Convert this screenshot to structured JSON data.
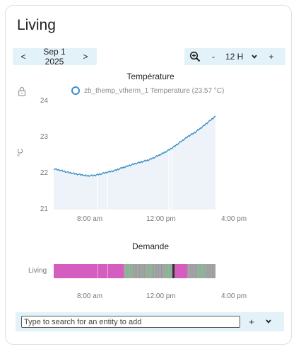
{
  "card": {
    "title": "Living"
  },
  "date_nav": {
    "prev_label": "<",
    "date": "Sep 1 2025",
    "next_label": ">"
  },
  "zoom_nav": {
    "zoom_icon": "zoom-in-icon",
    "minus_label": "-",
    "range": "12 H",
    "dropdown_icon": "chevron-down-icon",
    "plus_label": "+"
  },
  "lock_icon": "lock-icon",
  "temperature_chart": {
    "title": "Température",
    "legend": "zb_themp_vtherm_1 Temperature (23.57 °C)",
    "ylabel": "°C",
    "y_ticks": [
      "24",
      "23",
      "22",
      "21"
    ],
    "x_ticks": [
      "8:00 am",
      "12:00 pm",
      "4:00 pm"
    ]
  },
  "demand_chart": {
    "title": "Demande",
    "row_label": "Living",
    "x_ticks": [
      "8:00 am",
      "12:00 pm",
      "4:00 pm"
    ]
  },
  "search": {
    "placeholder": "Type to search for an entity to add",
    "add_label": "+",
    "expand_icon": "chevron-down-icon"
  },
  "colors": {
    "line": "#3b8fc9",
    "fill": "#edf3f8",
    "demand_on": "#d45dbf",
    "demand_mixed": "#8fb89a",
    "bar_bg": "#e3f2f9"
  },
  "chart_data": [
    {
      "type": "line",
      "title": "Température",
      "ylabel": "°C",
      "ylim": [
        21,
        24
      ],
      "x_axis": "time",
      "x_ticks": [
        "8:00 am",
        "12:00 pm",
        "4:00 pm"
      ],
      "series": [
        {
          "name": "zb_themp_vtherm_1 Temperature",
          "x": [
            5.5,
            6.0,
            6.5,
            7.0,
            7.5,
            8.0,
            8.5,
            9.0,
            9.5,
            10.0,
            10.5,
            11.0,
            11.5,
            12.0,
            12.5,
            13.0,
            13.5,
            14.0,
            14.5,
            15.0,
            15.5,
            16.0,
            16.5,
            17.0,
            17.5
          ],
          "values": [
            22.12,
            22.08,
            22.03,
            21.99,
            21.96,
            21.93,
            21.94,
            21.98,
            22.03,
            22.07,
            22.14,
            22.2,
            22.26,
            22.31,
            22.36,
            22.44,
            22.53,
            22.63,
            22.75,
            22.89,
            23.02,
            23.13,
            23.27,
            23.42,
            23.57
          ]
        }
      ]
    },
    {
      "type": "bar",
      "title": "Demande",
      "categories": [
        "Living"
      ],
      "x_ticks": [
        "8:00 am",
        "12:00 pm",
        "4:00 pm"
      ],
      "segments": [
        {
          "start": 5.5,
          "end": 10.7,
          "state": "on"
        },
        {
          "start": 10.7,
          "end": 14.4,
          "state": "mixed"
        },
        {
          "start": 14.4,
          "end": 15.4,
          "state": "on"
        },
        {
          "start": 15.4,
          "end": 17.5,
          "state": "mixed"
        }
      ]
    }
  ]
}
